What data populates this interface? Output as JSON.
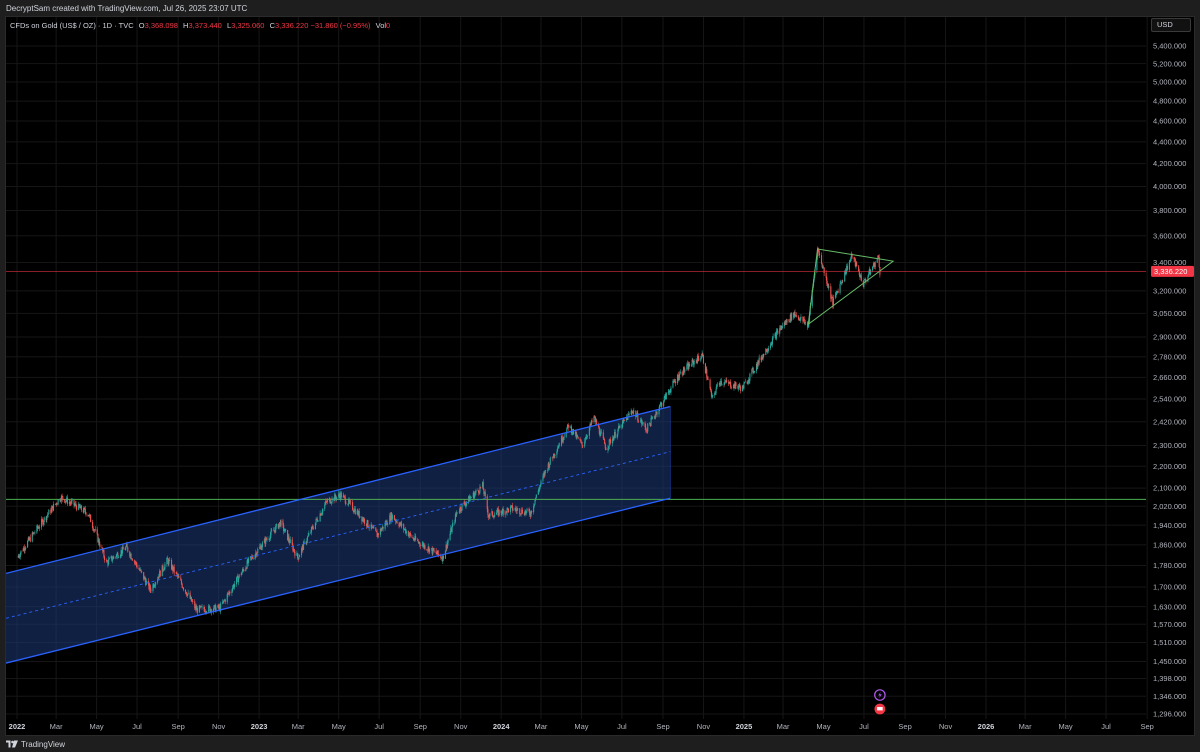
{
  "header": {
    "creator_text": "DecryptSam created with TradingView.com, Jul 26, 2025 23:07 UTC"
  },
  "legend": {
    "symbol": "CFDs on Gold (US$ / OZ) · 1D · TVC",
    "open_label": "O",
    "open_value": "3,368.098",
    "high_label": "H",
    "high_value": "3,373.440",
    "low_label": "L",
    "low_value": "3,325.060",
    "close_value": "3,336.220",
    "change_value": "−31.860 (−0.95%)",
    "vol_label": "Vol",
    "vol_value": "0"
  },
  "currency_button": {
    "label": "USD"
  },
  "footer": {
    "brand": "TradingView"
  },
  "colors": {
    "up": "#26a69a",
    "down": "#ef5350",
    "channel_line": "#2962ff",
    "channel_fill": "#1e3a78",
    "support_line": "#4caf50",
    "triangle_line": "#66bb6a",
    "price_line": "#f23645"
  },
  "chart_data": {
    "type": "candlestick",
    "symbol": "CFDs on Gold (US$ / OZ)",
    "interval": "1D",
    "y_scale": "log",
    "y_ticks": [
      "5,400.000",
      "5,200.000",
      "5,000.000",
      "4,800.000",
      "4,600.000",
      "4,400.000",
      "4,200.000",
      "4,000.000",
      "3,800.000",
      "3,600.000",
      "3,400.000",
      "3,200.000",
      "3,050.000",
      "2,900.000",
      "2,780.000",
      "2,660.000",
      "2,540.000",
      "2,420.000",
      "2,300.000",
      "2,200.000",
      "2,100.000",
      "2,020.000",
      "1,940.000",
      "1,860.000",
      "1,780.000",
      "1,700.000",
      "1,630.000",
      "1,570.000",
      "1,510.000",
      "1,450.000",
      "1,398.000",
      "1,346.000",
      "1,296.000"
    ],
    "x_ticks": [
      "2022",
      "Mar",
      "May",
      "Jul",
      "Sep",
      "Nov",
      "2023",
      "Mar",
      "May",
      "Jul",
      "Sep",
      "Nov",
      "2024",
      "Mar",
      "May",
      "Jul",
      "Sep",
      "Nov",
      "2025",
      "Mar",
      "May",
      "Jul",
      "Sep",
      "Nov",
      "2026",
      "Mar",
      "May",
      "Jul",
      "Sep"
    ],
    "last_price": "3,336.220",
    "price_path": [
      {
        "date": "2022-01-01",
        "price": 1810
      },
      {
        "date": "2022-03-08",
        "price": 2060
      },
      {
        "date": "2022-04-18",
        "price": 1990
      },
      {
        "date": "2022-05-16",
        "price": 1790
      },
      {
        "date": "2022-06-15",
        "price": 1850
      },
      {
        "date": "2022-07-21",
        "price": 1690
      },
      {
        "date": "2022-08-16",
        "price": 1800
      },
      {
        "date": "2022-09-28",
        "price": 1620
      },
      {
        "date": "2022-11-03",
        "price": 1625
      },
      {
        "date": "2022-12-15",
        "price": 1790
      },
      {
        "date": "2023-02-02",
        "price": 1950
      },
      {
        "date": "2023-02-28",
        "price": 1810
      },
      {
        "date": "2023-04-13",
        "price": 2040
      },
      {
        "date": "2023-05-04",
        "price": 2070
      },
      {
        "date": "2023-06-28",
        "price": 1900
      },
      {
        "date": "2023-07-20",
        "price": 1980
      },
      {
        "date": "2023-08-21",
        "price": 1885
      },
      {
        "date": "2023-10-05",
        "price": 1810
      },
      {
        "date": "2023-10-27",
        "price": 2000
      },
      {
        "date": "2023-12-04",
        "price": 2110
      },
      {
        "date": "2023-12-13",
        "price": 1980
      },
      {
        "date": "2024-01-17",
        "price": 2010
      },
      {
        "date": "2024-02-14",
        "price": 1990
      },
      {
        "date": "2024-03-08",
        "price": 2180
      },
      {
        "date": "2024-04-12",
        "price": 2400
      },
      {
        "date": "2024-05-02",
        "price": 2300
      },
      {
        "date": "2024-05-20",
        "price": 2440
      },
      {
        "date": "2024-06-07",
        "price": 2290
      },
      {
        "date": "2024-07-17",
        "price": 2480
      },
      {
        "date": "2024-08-07",
        "price": 2380
      },
      {
        "date": "2024-09-26",
        "price": 2680
      },
      {
        "date": "2024-10-30",
        "price": 2790
      },
      {
        "date": "2024-11-14",
        "price": 2540
      },
      {
        "date": "2024-11-25",
        "price": 2640
      },
      {
        "date": "2024-12-30",
        "price": 2600
      },
      {
        "date": "2025-02-24",
        "price": 2950
      },
      {
        "date": "2025-03-18",
        "price": 3050
      },
      {
        "date": "2025-04-08",
        "price": 2970
      },
      {
        "date": "2025-04-22",
        "price": 3500
      },
      {
        "date": "2025-05-15",
        "price": 3120
      },
      {
        "date": "2025-06-13",
        "price": 3450
      },
      {
        "date": "2025-06-30",
        "price": 3250
      },
      {
        "date": "2025-07-23",
        "price": 3440
      },
      {
        "date": "2025-07-25",
        "price": 3336
      }
    ],
    "drawings": {
      "horizontal_support": {
        "price": 2050
      },
      "current_price_line": {
        "price": 3336.22
      },
      "channel": {
        "upper": [
          {
            "date": "2022-01-01",
            "price": 1750
          },
          {
            "date": "2024-09-12",
            "price": 2500
          }
        ],
        "lower": [
          {
            "date": "2022-01-01",
            "price": 1445
          },
          {
            "date": "2024-09-12",
            "price": 2055
          }
        ],
        "mid": [
          {
            "date": "2022-01-01",
            "price": 1590
          },
          {
            "date": "2024-09-12",
            "price": 2270
          }
        ]
      },
      "triangle": [
        {
          "date": "2025-04-22",
          "price": 3500
        },
        {
          "date": "2025-08-14",
          "price": 3410
        },
        {
          "date": "2025-04-08",
          "price": 2980
        }
      ]
    }
  }
}
